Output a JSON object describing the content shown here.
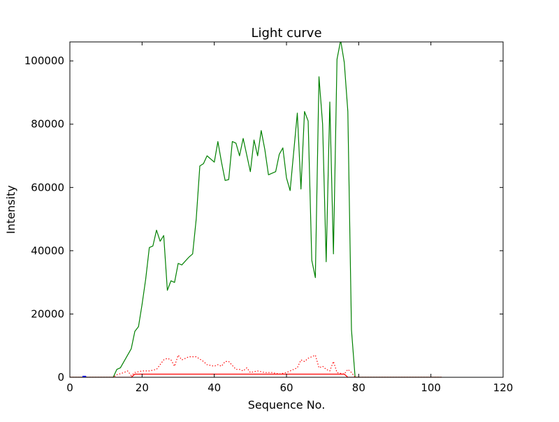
{
  "chart_data": {
    "type": "line",
    "title": "Light curve",
    "xlabel": "Sequence No.",
    "ylabel": "Intensity",
    "xlim": [
      0,
      120
    ],
    "ylim": [
      0,
      106000
    ],
    "grid": false,
    "x_ticks": [
      0,
      20,
      40,
      60,
      80,
      100,
      120
    ],
    "y_ticks": [
      0,
      20000,
      40000,
      60000,
      80000,
      100000
    ],
    "series": [
      {
        "color": "#008000",
        "style": "solid",
        "points": [
          [
            0,
            0
          ],
          [
            12,
            0
          ],
          [
            13,
            2500
          ],
          [
            14,
            3000
          ],
          [
            17,
            9000
          ],
          [
            18,
            14500
          ],
          [
            19,
            16000
          ],
          [
            20,
            23000
          ],
          [
            21,
            31000
          ],
          [
            22,
            41000
          ],
          [
            23,
            41500
          ],
          [
            24,
            46500
          ],
          [
            25,
            43000
          ],
          [
            26,
            44800
          ],
          [
            27,
            27500
          ],
          [
            28,
            30500
          ],
          [
            29,
            30000
          ],
          [
            30,
            36000
          ],
          [
            31,
            35500
          ],
          [
            33,
            38000
          ],
          [
            34,
            39000
          ],
          [
            35,
            50000
          ],
          [
            36,
            66800
          ],
          [
            37,
            67500
          ],
          [
            38,
            70000
          ],
          [
            40,
            68000
          ],
          [
            41,
            74500
          ],
          [
            42,
            68000
          ],
          [
            43,
            62200
          ],
          [
            44,
            62500
          ],
          [
            45,
            74500
          ],
          [
            46,
            74000
          ],
          [
            47,
            70000
          ],
          [
            48,
            75500
          ],
          [
            50,
            65000
          ],
          [
            51,
            75000
          ],
          [
            52,
            70000
          ],
          [
            53,
            78000
          ],
          [
            54,
            72000
          ],
          [
            55,
            64000
          ],
          [
            57,
            65000
          ],
          [
            58,
            70500
          ],
          [
            59,
            72500
          ],
          [
            60,
            63000
          ],
          [
            61,
            59000
          ],
          [
            63,
            83500
          ],
          [
            64,
            59500
          ],
          [
            65,
            84000
          ],
          [
            66,
            81000
          ],
          [
            67,
            37000
          ],
          [
            68,
            31500
          ],
          [
            69,
            95000
          ],
          [
            70,
            80000
          ],
          [
            71,
            36500
          ],
          [
            72,
            87000
          ],
          [
            73,
            39000
          ],
          [
            74,
            100500
          ],
          [
            75,
            106500
          ],
          [
            76,
            99500
          ],
          [
            77,
            84000
          ],
          [
            78,
            15000
          ],
          [
            79,
            0
          ],
          [
            103,
            0
          ]
        ]
      },
      {
        "color": "#ff0000",
        "style": "dotted",
        "points": [
          [
            0,
            0
          ],
          [
            12,
            0
          ],
          [
            13,
            800
          ],
          [
            15,
            1500
          ],
          [
            16,
            2000
          ],
          [
            17,
            500
          ],
          [
            18,
            1500
          ],
          [
            20,
            2000
          ],
          [
            22,
            2000
          ],
          [
            24,
            2500
          ],
          [
            26,
            5500
          ],
          [
            27,
            6000
          ],
          [
            28,
            5500
          ],
          [
            29,
            3500
          ],
          [
            30,
            7000
          ],
          [
            31,
            5500
          ],
          [
            33,
            6500
          ],
          [
            35,
            6500
          ],
          [
            37,
            5000
          ],
          [
            38,
            4000
          ],
          [
            40,
            3500
          ],
          [
            41,
            4000
          ],
          [
            42,
            3500
          ],
          [
            43,
            5000
          ],
          [
            44,
            5000
          ],
          [
            46,
            2500
          ],
          [
            47,
            2500
          ],
          [
            48,
            2000
          ],
          [
            49,
            3000
          ],
          [
            50,
            1500
          ],
          [
            52,
            2000
          ],
          [
            54,
            1500
          ],
          [
            56,
            1500
          ],
          [
            58,
            1000
          ],
          [
            60,
            1500
          ],
          [
            62,
            2500
          ],
          [
            63,
            3000
          ],
          [
            64,
            5500
          ],
          [
            65,
            5000
          ],
          [
            66,
            6000
          ],
          [
            67,
            6500
          ],
          [
            68,
            7000
          ],
          [
            69,
            3000
          ],
          [
            70,
            3500
          ],
          [
            71,
            2500
          ],
          [
            72,
            2000
          ],
          [
            73,
            5000
          ],
          [
            74,
            1500
          ],
          [
            76,
            1000
          ],
          [
            77,
            2500
          ],
          [
            78,
            1500
          ],
          [
            79,
            0
          ],
          [
            103,
            0
          ]
        ]
      },
      {
        "color": "#ff0000",
        "style": "solid",
        "points": [
          [
            0,
            0
          ],
          [
            17,
            0
          ],
          [
            18,
            1000
          ],
          [
            76,
            1000
          ],
          [
            77,
            0
          ],
          [
            103,
            0
          ]
        ]
      },
      {
        "color": "#0000ff",
        "style": "solid",
        "points": [
          [
            3.5,
            250
          ],
          [
            4.5,
            250
          ]
        ]
      }
    ]
  }
}
